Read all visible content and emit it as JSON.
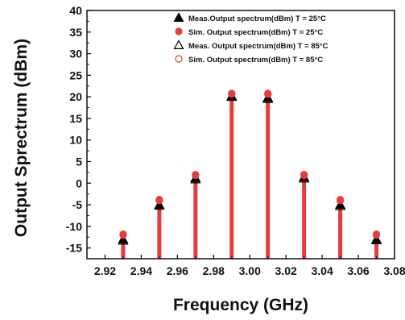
{
  "chart_data": {
    "type": "scatter",
    "title": "",
    "xlabel": "Frequency (GHz)",
    "ylabel": "Output Sprectrum (dBm)",
    "xlim": [
      2.91,
      3.08
    ],
    "ylim": [
      -17.5,
      40
    ],
    "xticks": [
      "2.92",
      "2.94",
      "2.96",
      "2.98",
      "3.00",
      "3.02",
      "3.04",
      "3.06",
      "3.08"
    ],
    "yticks": [
      "40",
      "35",
      "30",
      "25",
      "20",
      "15",
      "10",
      "5",
      "0",
      "-5",
      "-10",
      "-15"
    ],
    "grid": false,
    "legend_position": "top-right",
    "x": [
      2.93,
      2.95,
      2.97,
      2.99,
      3.01,
      3.03,
      3.05,
      3.07
    ],
    "series": [
      {
        "name": "Meas.Output spectrum(dBm) T = 25°C",
        "marker": "filled-triangle",
        "color": "#000000",
        "values": [
          -13.0,
          -5.0,
          1.2,
          20.2,
          19.8,
          1.4,
          -5.0,
          -13.0
        ]
      },
      {
        "name": "Sim. Output spectrum(dBm) T = 25°C",
        "marker": "filled-circle",
        "color": "#e63c3c",
        "values": [
          -11.8,
          -3.8,
          2.0,
          20.8,
          20.8,
          2.0,
          -3.8,
          -11.8
        ]
      },
      {
        "name": "Meas. Output spectrum(dBm) T = 85°C",
        "marker": "open-triangle",
        "color": "#000000",
        "values": [
          -13.3,
          -5.2,
          0.9,
          20.0,
          19.5,
          1.1,
          -5.3,
          -13.2
        ]
      },
      {
        "name": "Sim. Output spectrum(dBm) T = 85°C",
        "marker": "open-circle",
        "color": "#e63c3c",
        "values": [
          -12.0,
          -4.0,
          1.8,
          20.6,
          20.6,
          1.8,
          -4.0,
          -12.0
        ]
      }
    ],
    "stem_color": "#e63c3c"
  }
}
